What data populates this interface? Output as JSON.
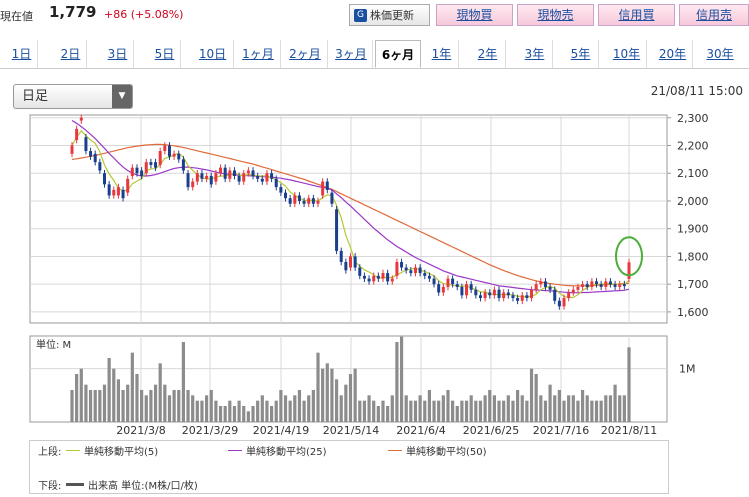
{
  "header": {
    "price_label": "現在値",
    "price_value": "1,779",
    "price_change": "+86 (+5.08%)",
    "refresh_label": "株価更新",
    "refresh_icon_glyph": "G",
    "buttons": [
      "現物買",
      "現物売",
      "信用買",
      "信用売"
    ]
  },
  "tabs": [
    "1日",
    "2日",
    "3日",
    "5日",
    "10日",
    "1ヶ月",
    "2ヶ月",
    "3ヶ月",
    "6ヶ月",
    "1年",
    "2年",
    "3年",
    "5年",
    "10年",
    "20年",
    "30年"
  ],
  "active_tab": "6ヶ月",
  "period_select": {
    "value": "日足",
    "arrow": "▼"
  },
  "datetime": "21/08/11 15:00",
  "colors": {
    "up": "#e8383d",
    "down": "#1a3f8f",
    "ma5": "#b5c832",
    "ma25": "#9b38c8",
    "ma50": "#e06a3a",
    "volume": "#8c8c8c",
    "highlight": "#4cae3a"
  },
  "chart_data": {
    "type": "candlestick",
    "ylim": [
      1560,
      2310
    ],
    "y_ticks": [
      "2,300",
      "2,200",
      "2,100",
      "2,000",
      "1,900",
      "1,800",
      "1,700",
      "1,600"
    ],
    "y_tick_values": [
      2300,
      2200,
      2100,
      2000,
      1900,
      1800,
      1700,
      1600
    ],
    "x_tick_labels": [
      "2021/3/8",
      "2021/3/29",
      "2021/4/19",
      "2021/5/14",
      "2021/6/4",
      "2021/6/25",
      "2021/7/16",
      "2021/8/11"
    ],
    "close": [
      2200,
      2260,
      2300,
      2180,
      2160,
      2140,
      2110,
      2060,
      2020,
      2040,
      2050,
      2010,
      2080,
      2120,
      2100,
      2090,
      2140,
      2130,
      2120,
      2180,
      2200,
      2160,
      2170,
      2150,
      2110,
      2050,
      2070,
      2100,
      2080,
      2090,
      2060,
      2100,
      2120,
      2080,
      2110,
      2090,
      2070,
      2100,
      2110,
      2090,
      2080,
      2070,
      2100,
      2080,
      2050,
      2030,
      2010,
      1990,
      2020,
      2000,
      1990,
      2010,
      1990,
      2000,
      2070,
      2040,
      1990,
      1820,
      1780,
      1750,
      1800,
      1760,
      1730,
      1720,
      1710,
      1730,
      1720,
      1740,
      1710,
      1720,
      1780,
      1760,
      1750,
      1740,
      1760,
      1740,
      1730,
      1720,
      1700,
      1670,
      1690,
      1720,
      1700,
      1690,
      1660,
      1700,
      1680,
      1660,
      1650,
      1670,
      1660,
      1680,
      1650,
      1670,
      1660,
      1650,
      1640,
      1660,
      1650,
      1680,
      1700,
      1710,
      1690,
      1680,
      1640,
      1620,
      1650,
      1670,
      1680,
      1690,
      1700,
      1690,
      1710,
      1700,
      1690,
      1710,
      1700,
      1690,
      1700,
      1693,
      1779
    ],
    "open_offsets": [
      -30,
      -40,
      -10,
      50,
      20,
      30,
      30,
      40,
      40,
      -20,
      -30,
      30,
      -50,
      -30,
      20,
      20,
      -40,
      10,
      20,
      -50,
      -20,
      40,
      -10,
      20,
      40,
      50,
      -20,
      -30,
      20,
      -10,
      30,
      -30,
      -20,
      40,
      -30,
      20,
      20,
      -30,
      -10,
      20,
      10,
      10,
      -30,
      20,
      30,
      20,
      20,
      20,
      -30,
      20,
      10,
      -20,
      20,
      -10,
      -50,
      30,
      40,
      150,
      40,
      30,
      -40,
      40,
      30,
      10,
      10,
      -20,
      10,
      -20,
      30,
      -10,
      -50,
      20,
      10,
      10,
      -20,
      20,
      10,
      10,
      20,
      30,
      -20,
      -30,
      20,
      10,
      30,
      -40,
      20,
      20,
      10,
      -20,
      10,
      -20,
      30,
      -20,
      10,
      10,
      10,
      -20,
      10,
      -30,
      -20,
      -10,
      20,
      10,
      40,
      20,
      -30,
      -20,
      -10,
      -10,
      -10,
      10,
      -20,
      10,
      10,
      -20,
      10,
      10,
      -10,
      7,
      -60
    ],
    "ma5": [
      2200,
      2230,
      2253,
      2235,
      2220,
      2208,
      2178,
      2130,
      2098,
      2074,
      2046,
      2036,
      2040,
      2062,
      2072,
      2080,
      2108,
      2116,
      2116,
      2132,
      2154,
      2158,
      2166,
      2172,
      2158,
      2128,
      2110,
      2096,
      2082,
      2080,
      2080,
      2086,
      2090,
      2090,
      2094,
      2100,
      2094,
      2090,
      2096,
      2094,
      2090,
      2090,
      2090,
      2084,
      2076,
      2066,
      2054,
      2032,
      2020,
      2010,
      2002,
      2002,
      2002,
      2000,
      2012,
      2022,
      2020,
      1984,
      1940,
      1876,
      1832,
      1782,
      1764,
      1752,
      1744,
      1734,
      1722,
      1724,
      1724,
      1724,
      1734,
      1742,
      1752,
      1754,
      1758,
      1750,
      1746,
      1738,
      1730,
      1712,
      1702,
      1700,
      1696,
      1694,
      1692,
      1694,
      1686,
      1680,
      1672,
      1672,
      1664,
      1664,
      1662,
      1662,
      1662,
      1662,
      1656,
      1656,
      1654,
      1656,
      1664,
      1680,
      1688,
      1692,
      1686,
      1668,
      1656,
      1652,
      1652,
      1662,
      1678,
      1688,
      1696,
      1700,
      1700,
      1702,
      1702,
      1700,
      1700,
      1699,
      1714
    ],
    "ma25": [
      2290,
      2280,
      2268,
      2255,
      2240,
      2225,
      2208,
      2190,
      2172,
      2155,
      2138,
      2122,
      2110,
      2100,
      2094,
      2090,
      2090,
      2092,
      2095,
      2100,
      2106,
      2112,
      2117,
      2120,
      2122,
      2122,
      2120,
      2118,
      2115,
      2112,
      2108,
      2104,
      2100,
      2098,
      2096,
      2094,
      2093,
      2092,
      2091,
      2090,
      2089,
      2088,
      2087,
      2086,
      2084,
      2082,
      2079,
      2076,
      2072,
      2068,
      2064,
      2060,
      2056,
      2052,
      2049,
      2046,
      2040,
      2026,
      2012,
      1996,
      1982,
      1966,
      1950,
      1934,
      1918,
      1902,
      1888,
      1874,
      1860,
      1848,
      1836,
      1826,
      1816,
      1806,
      1796,
      1788,
      1780,
      1772,
      1764,
      1756,
      1748,
      1742,
      1736,
      1730,
      1726,
      1722,
      1718,
      1714,
      1710,
      1706,
      1702,
      1698,
      1694,
      1692,
      1690,
      1688,
      1686,
      1684,
      1682,
      1680,
      1679,
      1678,
      1677,
      1676,
      1675,
      1673,
      1671,
      1670,
      1669,
      1669,
      1670,
      1670,
      1671,
      1672,
      1673,
      1674,
      1675,
      1676,
      1677,
      1678,
      1682
    ],
    "ma50": [
      2150,
      2152,
      2155,
      2158,
      2161,
      2164,
      2168,
      2172,
      2176,
      2180,
      2184,
      2188,
      2192,
      2195,
      2198,
      2200,
      2202,
      2203,
      2204,
      2204,
      2203,
      2201,
      2199,
      2196,
      2193,
      2189,
      2185,
      2181,
      2177,
      2173,
      2169,
      2165,
      2161,
      2157,
      2153,
      2149,
      2145,
      2141,
      2137,
      2133,
      2128,
      2123,
      2118,
      2113,
      2108,
      2103,
      2098,
      2093,
      2088,
      2083,
      2078,
      2072,
      2066,
      2060,
      2054,
      2048,
      2042,
      2034,
      2026,
      2018,
      2010,
      2002,
      1994,
      1986,
      1978,
      1970,
      1962,
      1954,
      1946,
      1938,
      1930,
      1922,
      1914,
      1906,
      1898,
      1890,
      1882,
      1874,
      1866,
      1858,
      1850,
      1842,
      1834,
      1826,
      1818,
      1810,
      1802,
      1794,
      1786,
      1778,
      1770,
      1763,
      1756,
      1749,
      1743,
      1737,
      1731,
      1726,
      1721,
      1716,
      1712,
      1708,
      1705,
      1702,
      1700,
      1698,
      1696,
      1695,
      1694,
      1694,
      1694,
      1694,
      1695,
      1696,
      1697,
      1698,
      1699,
      1700,
      1701,
      1702,
      1703
    ],
    "volume": [
      0.6,
      0.9,
      1.0,
      0.7,
      0.6,
      0.6,
      0.6,
      0.7,
      1.2,
      1.0,
      0.8,
      0.6,
      0.7,
      1.3,
      0.9,
      0.6,
      0.5,
      0.6,
      0.7,
      1.1,
      0.7,
      0.5,
      0.6,
      0.6,
      1.5,
      0.6,
      0.5,
      0.4,
      0.4,
      0.5,
      0.6,
      0.4,
      0.3,
      0.3,
      0.4,
      0.3,
      0.4,
      0.3,
      0.2,
      0.3,
      0.4,
      0.5,
      0.4,
      0.3,
      0.4,
      0.6,
      0.5,
      0.4,
      0.5,
      0.6,
      0.4,
      0.5,
      0.6,
      1.3,
      1.0,
      1.1,
      1.0,
      0.8,
      0.5,
      0.7,
      0.9,
      1.0,
      0.4,
      0.4,
      0.5,
      0.4,
      0.3,
      0.4,
      0.3,
      0.5,
      1.5,
      1.6,
      0.5,
      0.4,
      0.4,
      0.5,
      0.4,
      0.6,
      0.4,
      0.4,
      0.5,
      0.6,
      0.4,
      0.3,
      0.4,
      0.4,
      0.5,
      0.4,
      0.4,
      0.5,
      0.6,
      0.5,
      0.4,
      0.4,
      0.5,
      0.4,
      0.6,
      0.5,
      0.4,
      1.0,
      0.9,
      0.5,
      0.4,
      0.7,
      0.5,
      0.6,
      0.4,
      0.5,
      0.5,
      0.4,
      0.6,
      0.5,
      0.4,
      0.4,
      0.4,
      0.5,
      0.5,
      0.7,
      0.5,
      0.5,
      1.4
    ],
    "volume_ylim": [
      0,
      1.5
    ],
    "volume_unit_label": "単位: M",
    "volume_tick": "1M",
    "legend": {
      "upper_label": "上段:",
      "lower_label": "下段:",
      "items": [
        "単純移動平均(5)",
        "単純移動平均(25)",
        "単純移動平均(50)"
      ],
      "volume_item": "出来高 単位:(M株/口/枚)"
    }
  }
}
